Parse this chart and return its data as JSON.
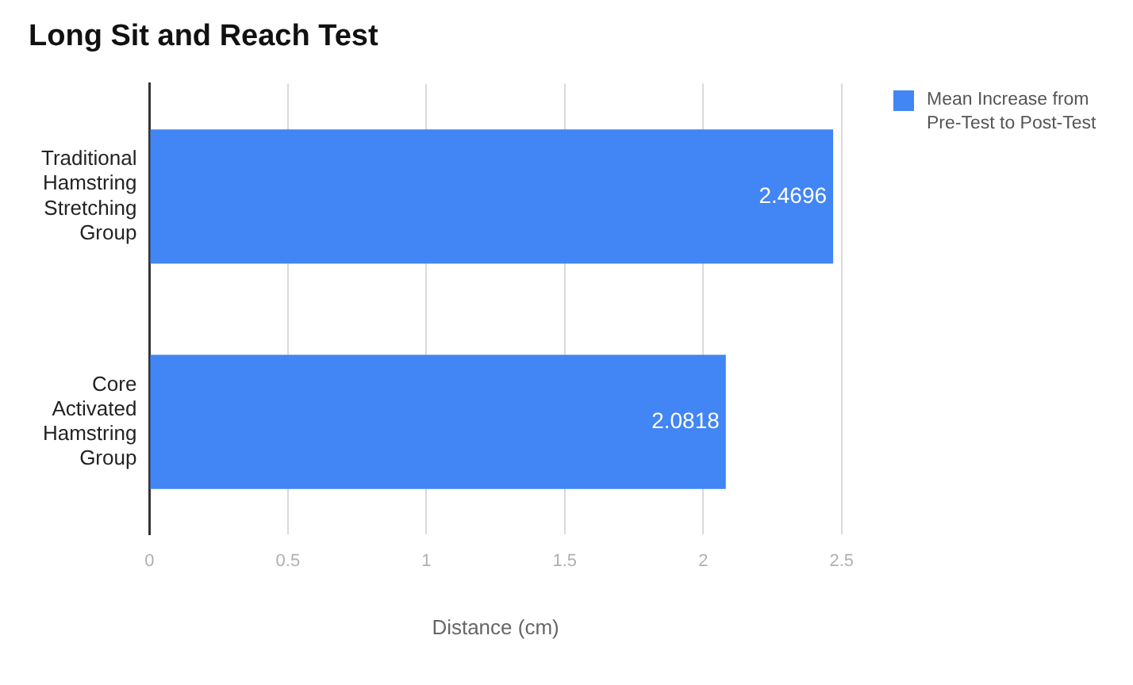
{
  "chart_data": {
    "type": "bar",
    "orientation": "horizontal",
    "title": "Long Sit and Reach Test",
    "xlabel": "Distance (cm)",
    "categories": [
      "Traditional Hamstring Stretching Group",
      "Core Activated Hamstring Group"
    ],
    "series": [
      {
        "name": "Mean Increase from Pre-Test to Post-Test",
        "color": "#4285f4",
        "values": [
          2.4696,
          2.0818
        ]
      }
    ],
    "xlim": [
      0,
      2.5
    ],
    "xticks": [
      0,
      0.5,
      1,
      1.5,
      2,
      2.5
    ],
    "grid": "x",
    "legend": "top right",
    "data_labels": true
  }
}
